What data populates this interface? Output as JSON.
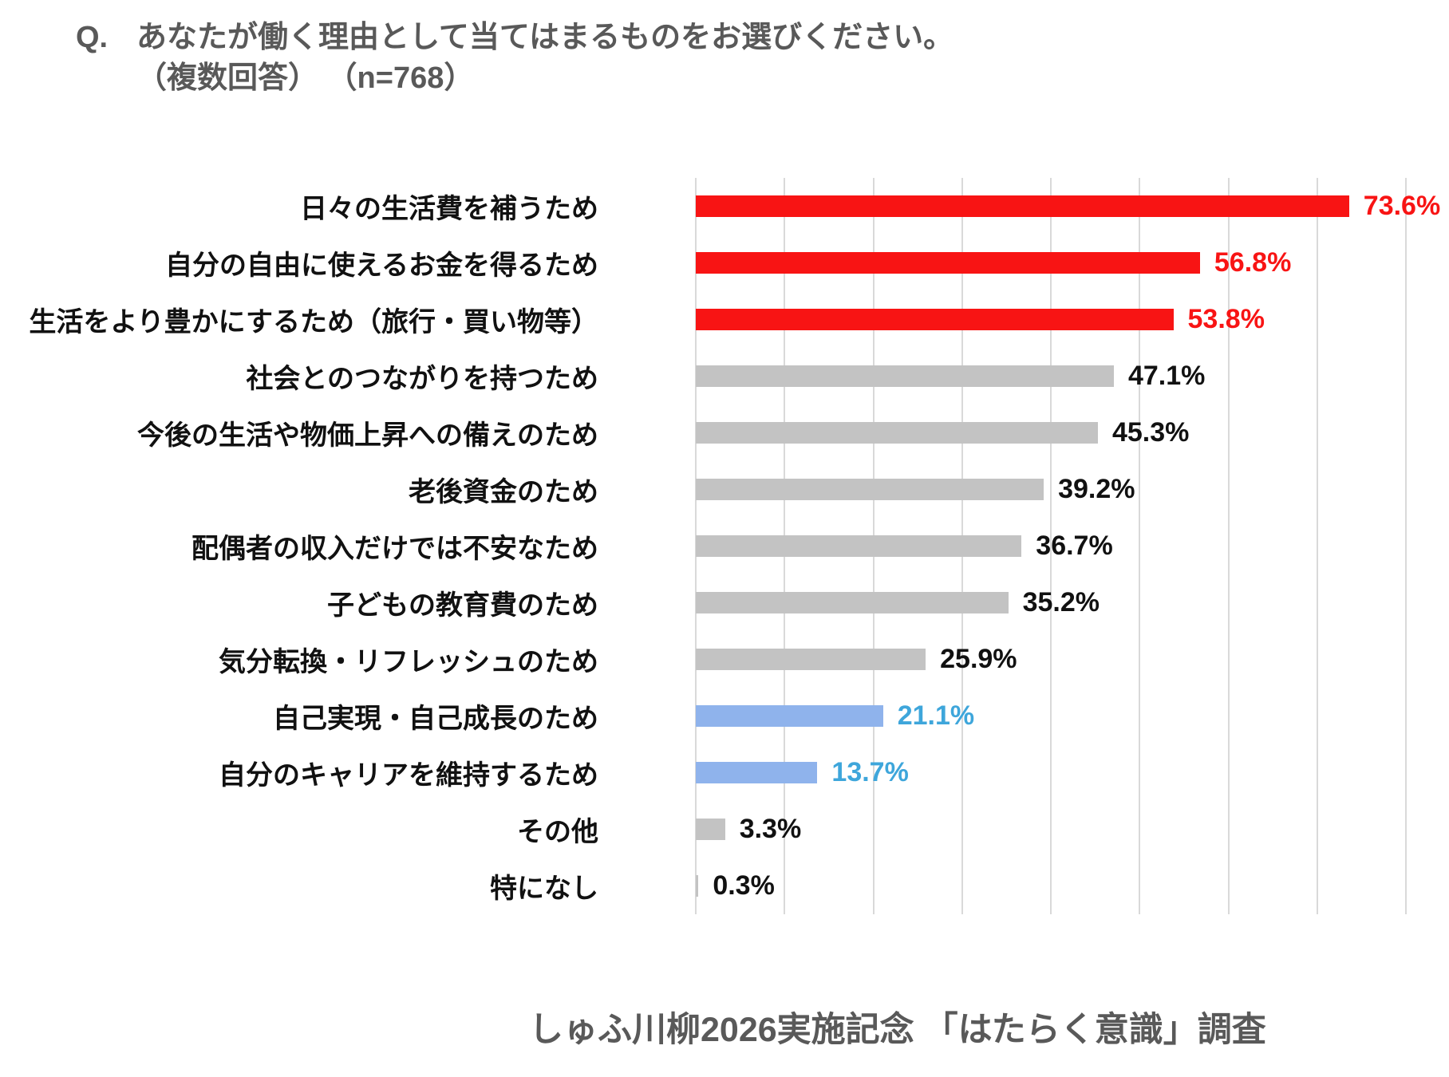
{
  "title": {
    "prefix": "Q.",
    "line1": "あなたが働く理由として当てはまるものをお選びください。",
    "line2": "（複数回答） （n=768）"
  },
  "footer": "しゅふ川柳2026実施記念 「はたらく意識」調査",
  "colors": {
    "red": "#F81414",
    "gray": "#C3C3C3",
    "blue_bar": "#8FB3EC",
    "blue_text": "#3EA6DB",
    "black_text": "#111111",
    "heading_gray": "#595959",
    "gridline": "#D9D9D9"
  },
  "chart_data": {
    "type": "bar",
    "orientation": "horizontal",
    "categories": [
      "日々の生活費を補うため",
      "自分の自由に使えるお金を得るため",
      "生活をより豊かにするため（旅行・買い物等）",
      "社会とのつながりを持つため",
      "今後の生活や物価上昇への備えのため",
      "老後資金のため",
      "配偶者の収入だけでは不安なため",
      "子どもの教育費のため",
      "気分転換・リフレッシュのため",
      "自己実現・自己成長のため",
      "自分のキャリアを維持するため",
      "その他",
      "特になし"
    ],
    "values": [
      73.6,
      56.8,
      53.8,
      47.1,
      45.3,
      39.2,
      36.7,
      35.2,
      25.9,
      21.1,
      13.7,
      3.3,
      0.3
    ],
    "value_labels": [
      "73.6%",
      "56.8%",
      "53.8%",
      "47.1%",
      "45.3%",
      "39.2%",
      "36.7%",
      "35.2%",
      "25.9%",
      "21.1%",
      "13.7%",
      "3.3%",
      "0.3%"
    ],
    "bar_colors": [
      "#F81414",
      "#F81414",
      "#F81414",
      "#C3C3C3",
      "#C3C3C3",
      "#C3C3C3",
      "#C3C3C3",
      "#C3C3C3",
      "#C3C3C3",
      "#8FB3EC",
      "#8FB3EC",
      "#C3C3C3",
      "#C3C3C3"
    ],
    "value_label_colors": [
      "#F81414",
      "#F81414",
      "#F81414",
      "#111111",
      "#111111",
      "#111111",
      "#111111",
      "#111111",
      "#111111",
      "#3EA6DB",
      "#3EA6DB",
      "#111111",
      "#111111"
    ],
    "xlabel": "",
    "ylabel": "",
    "xlim": [
      0,
      80
    ],
    "gridline_step": 10,
    "grid": true,
    "legend": false
  }
}
